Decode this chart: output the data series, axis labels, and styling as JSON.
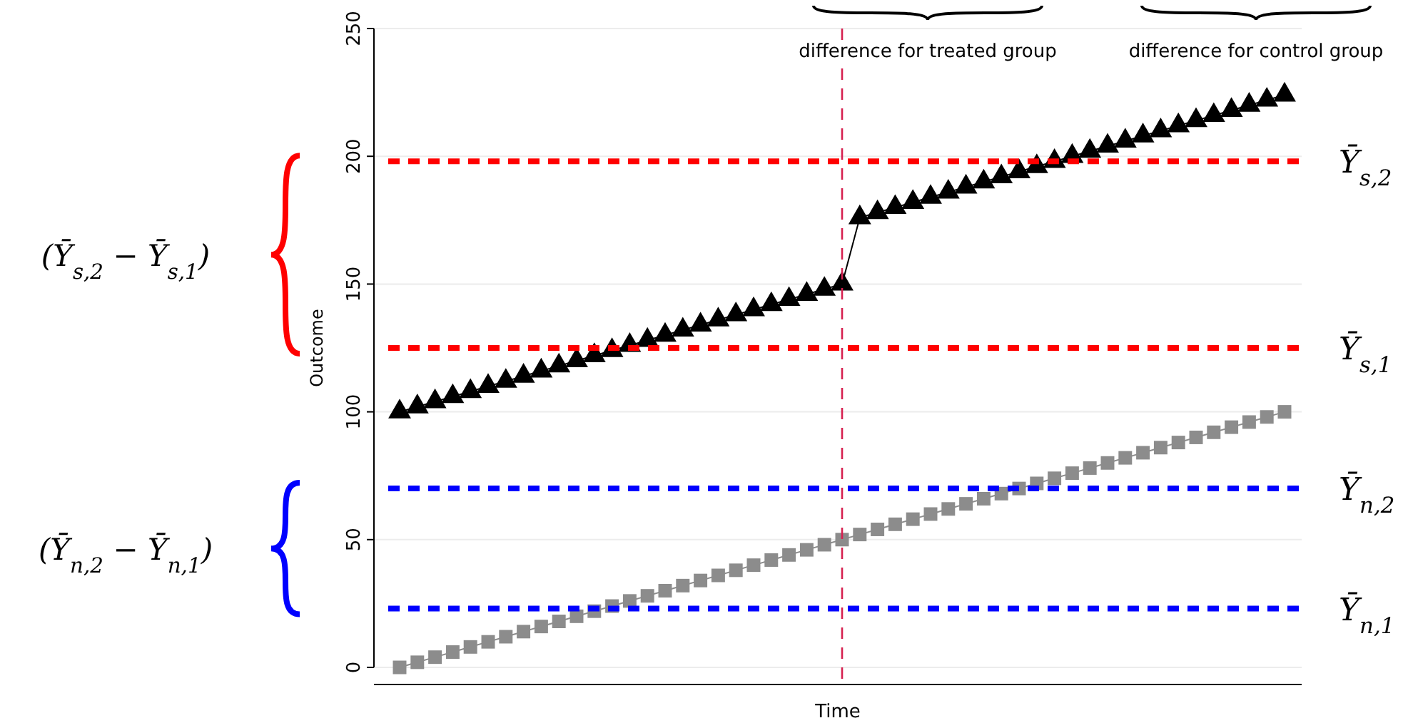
{
  "chart_data": {
    "type": "line",
    "xlabel": "Time",
    "ylabel": "Outcome",
    "ylim": [
      0,
      250
    ],
    "yticks": [
      0,
      50,
      100,
      150,
      200,
      250
    ],
    "grid": "y",
    "categories": [
      null,
      null,
      null,
      null,
      null,
      null,
      null,
      null,
      null,
      null,
      null,
      null,
      null,
      null,
      null,
      null,
      null,
      null,
      null,
      null,
      null,
      null,
      null,
      null,
      null,
      null,
      null,
      null,
      null,
      null,
      null,
      null,
      null,
      null,
      null,
      null,
      null,
      null,
      null,
      null,
      null,
      null,
      null,
      null,
      null,
      null,
      null,
      null,
      null,
      null,
      null
    ],
    "series": [
      {
        "color": "#000000",
        "marker": "triangle",
        "values": [
          100,
          102,
          104,
          106,
          108,
          110,
          112,
          114,
          116,
          118,
          120,
          122,
          124,
          126,
          128,
          130,
          132,
          134,
          136,
          138,
          140,
          142,
          144,
          146,
          148,
          150,
          176,
          178,
          180,
          182,
          184,
          186,
          188,
          190,
          192,
          194,
          196,
          198,
          200,
          202,
          204,
          206,
          208,
          210,
          212,
          214,
          216,
          218,
          220,
          222,
          224
        ]
      },
      {
        "color": "#8c8c8c",
        "marker": "square",
        "values": [
          0,
          2,
          4,
          6,
          8,
          10,
          12,
          14,
          16,
          18,
          20,
          22,
          24,
          26,
          28,
          30,
          32,
          34,
          36,
          38,
          40,
          42,
          44,
          46,
          48,
          50,
          52,
          54,
          56,
          58,
          60,
          62,
          64,
          66,
          68,
          70,
          72,
          74,
          76,
          78,
          80,
          82,
          84,
          86,
          88,
          90,
          92,
          94,
          96,
          98,
          100
        ]
      }
    ],
    "ref_lines": [
      {
        "axis": "y",
        "value": 198,
        "label": "Ȳ$_{s,2}$",
        "color": "#ff0000",
        "line_style": "dashed"
      },
      {
        "axis": "y",
        "value": 125,
        "label": "Ȳ$_{s,1}$",
        "color": "#ff0000",
        "line_style": "dashed"
      },
      {
        "axis": "y",
        "value": 70,
        "label": "Ȳ$_{n,2}$",
        "color": "#0000ff",
        "line_style": "dashed"
      },
      {
        "axis": "y",
        "value": 23,
        "label": "Ȳ$_{n,1}$",
        "color": "#0000ff",
        "line_style": "dashed"
      }
    ],
    "annotations": [
      "difference for treated group",
      "difference for control group",
      "(Ȳ$_{s,2}$ − Ȳ$_{s,1}$)",
      "(Ȳ$_{n,2}$ − Ȳ$_{n,1}$)"
    ]
  }
}
